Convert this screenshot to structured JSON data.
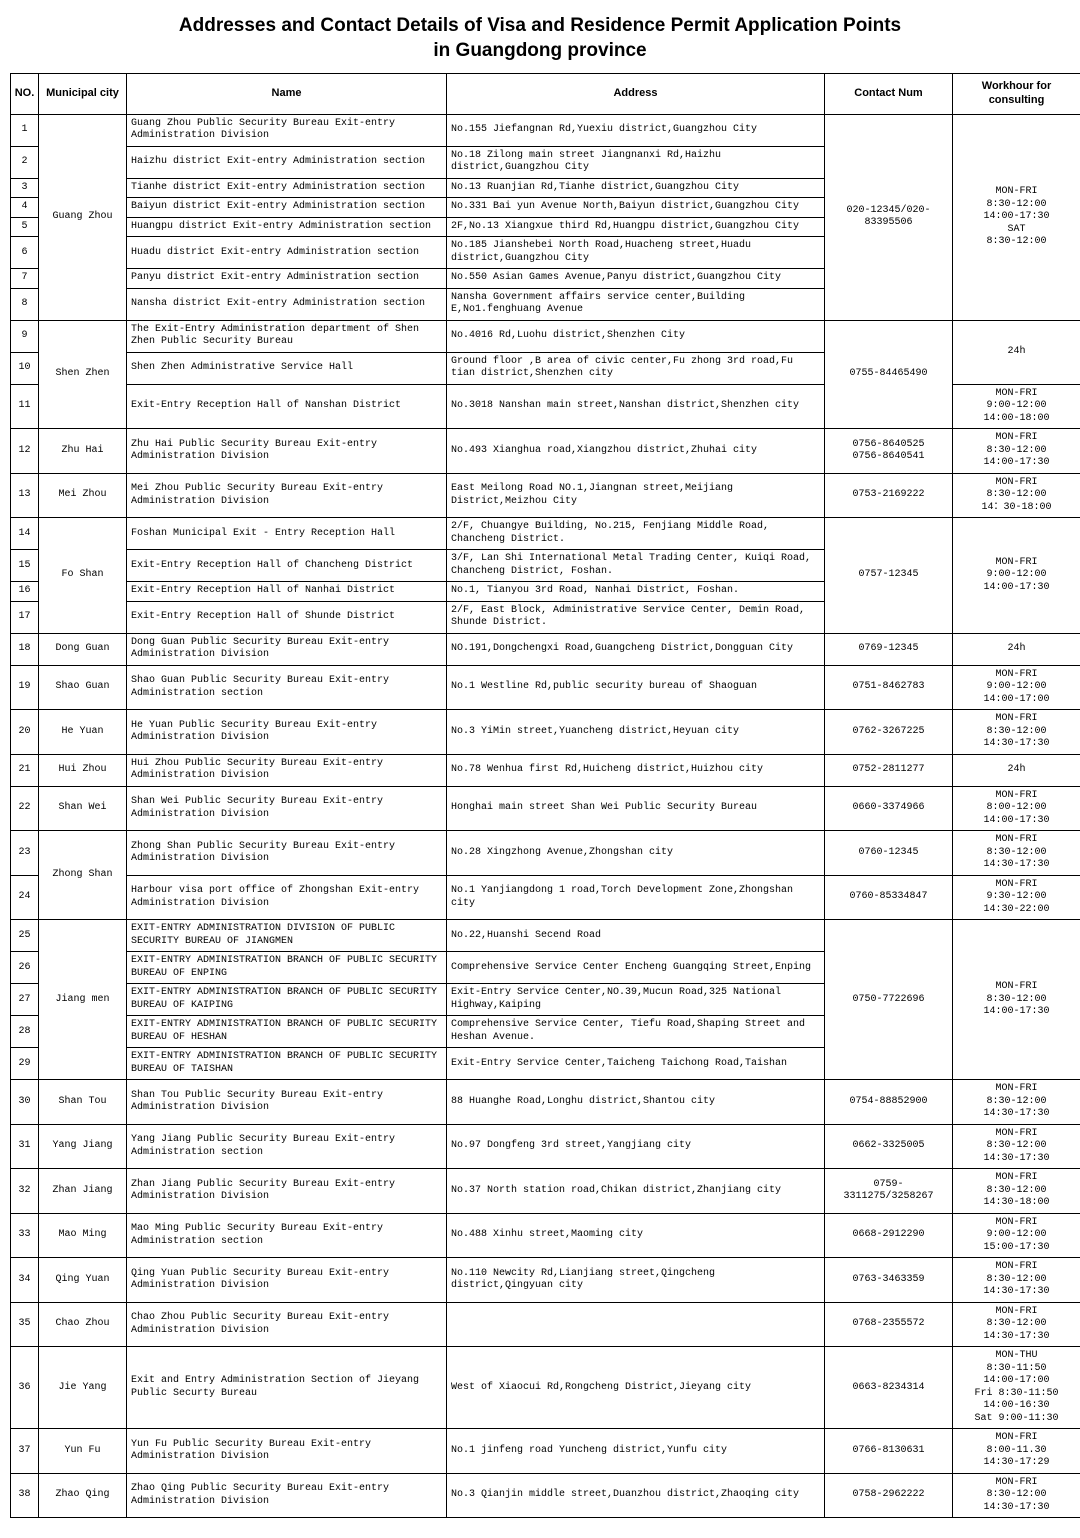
{
  "title": "Addresses and Contact Details of Visa and Residence Permit Application Points\nin Guangdong province",
  "columns": {
    "no": "NO.",
    "city": "Municipal city",
    "name": "Name",
    "address": "Address",
    "contact": "Contact Num",
    "hours": "Workhour for consulting"
  },
  "groups": [
    {
      "city": "Guang Zhou",
      "contact": "020-12345/020-83395506",
      "hours": "MON-FRI\n8:30-12:00\n14:00-17:30\nSAT\n8:30-12:00",
      "rows": [
        {
          "no": 1,
          "name": "Guang Zhou Public Security Bureau Exit-entry Administration Division",
          "address": "No.155 Jiefangnan Rd,Yuexiu district,Guangzhou City"
        },
        {
          "no": 2,
          "name": "Haizhu district Exit-entry Administration section",
          "address": "No.18 Zilong main street Jiangnanxi Rd,Haizhu district,Guangzhou City"
        },
        {
          "no": 3,
          "name": "Tianhe district Exit-entry Administration section",
          "address": "No.13 Ruanjian Rd,Tianhe district,Guangzhou City"
        },
        {
          "no": 4,
          "name": "Baiyun district Exit-entry Administration section",
          "address": "No.331 Bai yun Avenue North,Baiyun district,Guangzhou City"
        },
        {
          "no": 5,
          "name": "Huangpu district Exit-entry Administration section",
          "address": "2F,No.13 Xiangxue third Rd,Huangpu district,Guangzhou City"
        },
        {
          "no": 6,
          "name": "Huadu district Exit-entry Administration section",
          "address": "No.185 Jianshebei North Road,Huacheng street,Huadu district,Guangzhou City"
        },
        {
          "no": 7,
          "name": "Panyu district Exit-entry Administration section",
          "address": "No.550 Asian Games Avenue,Panyu district,Guangzhou City"
        },
        {
          "no": 8,
          "name": "Nansha district Exit-entry Administration section",
          "address": "Nansha Government affairs service center,Building E,No1.fenghuang Avenue"
        }
      ]
    },
    {
      "city": "Shen Zhen",
      "contact": "0755-84465490",
      "rows": [
        {
          "no": 9,
          "name": "The Exit-Entry Administration department of Shen Zhen Public Security Bureau",
          "address": "No.4016 Rd,Luohu district,Shenzhen City",
          "hours": "24h",
          "hoursSpan": 2
        },
        {
          "no": 10,
          "name": "Shen Zhen Administrative Service Hall",
          "address": "Ground floor ,B area of civic center,Fu zhong 3rd road,Fu tian district,Shenzhen city"
        },
        {
          "no": 11,
          "name": "Exit-Entry Reception Hall of Nanshan District",
          "address": "No.3018 Nanshan main street,Nanshan district,Shenzhen city",
          "hours": "MON-FRI\n9:00-12:00\n14:00-18:00",
          "hoursSpan": 1
        }
      ]
    },
    {
      "city": "Zhu Hai",
      "contact": "0756-8640525\n0756-8640541",
      "hours": "MON-FRI\n8:30-12:00\n14:00-17:30",
      "rows": [
        {
          "no": 12,
          "name": "Zhu Hai Public Security Bureau Exit-entry Administration Division",
          "address": "No.493 Xianghua road,Xiangzhou district,Zhuhai city"
        }
      ]
    },
    {
      "city": "Mei Zhou",
      "contact": "0753-2169222",
      "hours": "MON-FRI\n8:30-12:00\n14：30-18:00",
      "rows": [
        {
          "no": 13,
          "name": "Mei Zhou Public Security Bureau Exit-entry Administration Division",
          "address": "East Meilong Road NO.1,Jiangnan street,Meijiang District,Meizhou City"
        }
      ]
    },
    {
      "city": "Fo Shan",
      "contact": "0757-12345",
      "hours": "MON-FRI\n9:00-12:00\n14:00-17:30",
      "rows": [
        {
          "no": 14,
          "name": "Foshan Municipal Exit - Entry Reception Hall",
          "address": "2/F, Chuangye Building, No.215, Fenjiang Middle Road, Chancheng District."
        },
        {
          "no": 15,
          "name": "Exit-Entry Reception Hall of Chancheng District",
          "address": "3/F, Lan Shi International Metal Trading Center, Kuiqi Road, Chancheng District, Foshan."
        },
        {
          "no": 16,
          "name": "Exit-Entry Reception Hall of Nanhai District",
          "address": "No.1, Tianyou 3rd Road, Nanhai District, Foshan."
        },
        {
          "no": 17,
          "name": "Exit-Entry Reception Hall of Shunde District",
          "address": "2/F, East Block, Administrative Service Center, Demin Road, Shunde District."
        }
      ]
    },
    {
      "city": "Dong Guan",
      "contact": "0769-12345",
      "hours": "24h",
      "rows": [
        {
          "no": 18,
          "name": "Dong Guan Public Security Bureau Exit-entry Administration Division",
          "address": "NO.191,Dongchengxi Road,Guangcheng District,Dongguan City"
        }
      ]
    },
    {
      "city": "Shao Guan",
      "contact": "0751-8462783",
      "hours": "MON-FRI\n9:00-12:00\n14:00-17:00",
      "rows": [
        {
          "no": 19,
          "name": "Shao Guan Public Security Bureau Exit-entry Administration section",
          "address": "No.1 Westline Rd,public security bureau of Shaoguan"
        }
      ]
    },
    {
      "city": "He Yuan",
      "contact": "0762-3267225",
      "hours": "MON-FRI\n8:30-12:00\n14:30-17:30",
      "rows": [
        {
          "no": 20,
          "name": "He Yuan Public Security Bureau Exit-entry Administration Division",
          "address": "No.3 YiMin street,Yuancheng district,Heyuan city"
        }
      ]
    },
    {
      "city": "Hui Zhou",
      "contact": "0752-2811277",
      "hours": "24h",
      "rows": [
        {
          "no": 21,
          "name": "Hui Zhou Public Security Bureau Exit-entry Administration Division",
          "address": "No.78 Wenhua first Rd,Huicheng district,Huizhou city"
        }
      ]
    },
    {
      "city": "Shan Wei",
      "contact": "0660-3374966",
      "hours": "MON-FRI\n8:00-12:00\n14:00-17:30",
      "rows": [
        {
          "no": 22,
          "name": "Shan Wei Public Security Bureau Exit-entry Administration Division",
          "address": "Honghai main street Shan Wei Public Security Bureau"
        }
      ]
    },
    {
      "city": "Zhong Shan",
      "rows": [
        {
          "no": 23,
          "name": "Zhong Shan Public Security Bureau Exit-entry Administration Division",
          "address": "No.28 Xingzhong Avenue,Zhongshan city",
          "contact": "0760-12345",
          "hours": "MON-FRI\n8:30-12:00\n14:30-17:30"
        },
        {
          "no": 24,
          "name": "Harbour visa port office of Zhongshan Exit-entry Administration Division",
          "address": "No.1 Yanjiangdong 1 road,Torch Development Zone,Zhongshan city",
          "contact": "0760-85334847",
          "hours": "MON-FRI\n9:30-12:00\n14:30-22:00"
        }
      ]
    },
    {
      "city": "Jiang men",
      "contact": "0750-7722696",
      "hours": "MON-FRI\n8:30-12:00\n14:00-17:30",
      "rows": [
        {
          "no": 25,
          "name": "EXIT-ENTRY ADMINISTRATION DIVISION OF PUBLIC SECURITY BUREAU OF JIANGMEN",
          "address": "No.22,Huanshi Secend Road"
        },
        {
          "no": 26,
          "name": "EXIT-ENTRY ADMINISTRATION BRANCH OF PUBLIC SECURITY BUREAU OF ENPING",
          "address": "Comprehensive Service Center Encheng Guangqing Street,Enping"
        },
        {
          "no": 27,
          "name": "EXIT-ENTRY ADMINISTRATION BRANCH OF PUBLIC SECURITY BUREAU OF KAIPING",
          "address": "Exit-Entry Service Center,NO.39,Mucun Road,325 National Highway,Kaiping"
        },
        {
          "no": 28,
          "name": "EXIT-ENTRY ADMINISTRATION BRANCH OF PUBLIC SECURITY BUREAU OF HESHAN",
          "address": "Comprehensive Service Center, Tiefu Road,Shaping Street and Heshan Avenue."
        },
        {
          "no": 29,
          "name": "EXIT-ENTRY ADMINISTRATION BRANCH OF PUBLIC SECURITY BUREAU OF TAISHAN",
          "address": "Exit-Entry Service Center,Taicheng Taichong Road,Taishan"
        }
      ]
    },
    {
      "city": "Shan Tou",
      "contact": "0754-88852900",
      "hours": "MON-FRI\n8:30-12:00\n14:30-17:30",
      "rows": [
        {
          "no": 30,
          "name": "Shan Tou Public Security Bureau Exit-entry Administration Division",
          "address": "88 Huanghe Road,Longhu district,Shantou city"
        }
      ]
    },
    {
      "city": "Yang Jiang",
      "contact": "0662-3325005",
      "hours": "MON-FRI\n8:30-12:00\n14:30-17:30",
      "rows": [
        {
          "no": 31,
          "name": "Yang Jiang  Public Security Bureau Exit-entry Administration section",
          "address": "No.97 Dongfeng 3rd street,Yangjiang city"
        }
      ]
    },
    {
      "city": "Zhan Jiang",
      "contact": "0759-3311275/3258267",
      "hours": "MON-FRI\n8:30-12:00\n14:30-18:00",
      "rows": [
        {
          "no": 32,
          "name": "Zhan Jiang Public Security Bureau Exit-entry Administration Division",
          "address": "No.37 North station road,Chikan district,Zhanjiang city"
        }
      ]
    },
    {
      "city": "Mao Ming",
      "contact": "0668-2912290",
      "hours": "MON-FRI\n9:00-12:00\n15:00-17:30",
      "rows": [
        {
          "no": 33,
          "name": "Mao Ming Public Security Bureau Exit-entry Administration section",
          "address": "No.488 Xinhu street,Maoming city"
        }
      ]
    },
    {
      "city": "Qing Yuan",
      "contact": "0763-3463359",
      "hours": "MON-FRI\n8:30-12:00\n14:30-17:30",
      "rows": [
        {
          "no": 34,
          "name": "Qing Yuan Public Security Bureau Exit-entry Administration Division",
          "address": "No.110 Newcity Rd,Lianjiang street,Qingcheng district,Qingyuan city"
        }
      ]
    },
    {
      "city": "Chao Zhou",
      "contact": "0768-2355572",
      "hours": "MON-FRI\n8:30-12:00\n14:30-17:30",
      "rows": [
        {
          "no": 35,
          "name": "Chao Zhou Public Security Bureau Exit-entry Administration Division",
          "address": ""
        }
      ]
    },
    {
      "city": "Jie Yang",
      "contact": "0663-8234314",
      "hours": "MON-THU\n8:30-11:50\n14:00-17:00\nFri 8:30-11:50\n14:00-16:30\nSat 9:00-11:30",
      "rows": [
        {
          "no": 36,
          "name": "Exit and Entry Administration Section of Jieyang Public Securty Bureau",
          "address": "West of Xiaocui Rd,Rongcheng District,Jieyang city"
        }
      ]
    },
    {
      "city": "Yun Fu",
      "contact": "0766-8130631",
      "hours": "MON-FRI\n8:00-11.30\n14:30-17:29",
      "rows": [
        {
          "no": 37,
          "name": "Yun Fu Public Security Bureau Exit-entry Administration Division",
          "address": "No.1 jinfeng road Yuncheng district,Yunfu city"
        }
      ]
    },
    {
      "city": "Zhao Qing",
      "contact": "0758-2962222",
      "hours": "MON-FRI\n8:30-12:00\n14:30-17:30",
      "rows": [
        {
          "no": 38,
          "name": "Zhao Qing Public Security Bureau Exit-entry Administration Division",
          "address": "No.3 Qianjin middle street,Duanzhou district,Zhaoqing city"
        }
      ]
    }
  ]
}
